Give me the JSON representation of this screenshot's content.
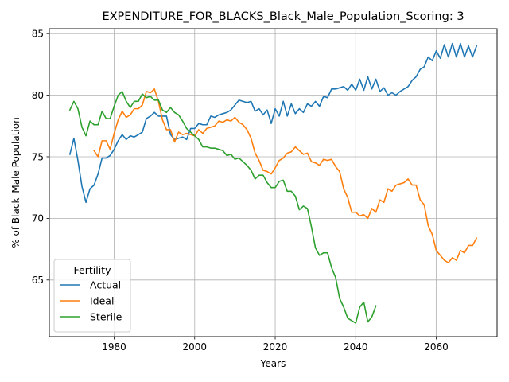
{
  "chart_data": {
    "type": "line",
    "title": "EXPENDITURE_FOR_BLACKS_Black_Male_Population_Scoring: 3",
    "xlabel": "Years",
    "ylabel": "% of Black_Male Population",
    "xlim": [
      1963.9,
      2075.1
    ],
    "ylim": [
      60.4,
      85.4
    ],
    "xticks": [
      1980,
      2000,
      2020,
      2040,
      2060
    ],
    "yticks": [
      65,
      70,
      75,
      80,
      85
    ],
    "grid": true,
    "legend": {
      "title": "Fertility",
      "placement": "lower-left"
    },
    "series": [
      {
        "name": "Actual",
        "color": "#1f77b4",
        "x": [
          1969,
          1970,
          1971,
          1972,
          1973,
          1974,
          1975,
          1976,
          1977,
          1978,
          1979,
          1980,
          1981,
          1982,
          1983,
          1984,
          1985,
          1986,
          1987,
          1988,
          1989,
          1990,
          1991,
          1992,
          1993,
          1994,
          1995,
          1996,
          1997,
          1998,
          1999,
          2000,
          2001,
          2002,
          2003,
          2004,
          2005,
          2006,
          2007,
          2008,
          2009,
          2010,
          2011,
          2012,
          2013,
          2014,
          2015,
          2016,
          2017,
          2018,
          2019,
          2020,
          2021,
          2022,
          2023,
          2024,
          2025,
          2026,
          2027,
          2028,
          2029,
          2030,
          2031,
          2032,
          2033,
          2034,
          2035,
          2036,
          2037,
          2038,
          2039,
          2040,
          2041,
          2042,
          2043,
          2044,
          2045,
          2046,
          2047,
          2048,
          2049,
          2050,
          2051,
          2052,
          2053,
          2054,
          2055,
          2056,
          2057,
          2058,
          2059,
          2060,
          2061,
          2062,
          2063,
          2064,
          2065,
          2066,
          2067,
          2068,
          2069,
          2070
        ],
        "values": [
          75.2,
          76.5,
          74.7,
          72.6,
          71.3,
          72.4,
          72.7,
          73.6,
          74.9,
          74.9,
          75.1,
          75.6,
          76.3,
          76.8,
          76.4,
          76.7,
          76.6,
          76.8,
          77.0,
          78.1,
          78.3,
          78.6,
          78.3,
          78.3,
          78.3,
          76.8,
          76.4,
          76.5,
          76.6,
          76.4,
          77.3,
          77.3,
          77.7,
          77.6,
          77.6,
          78.3,
          78.2,
          78.4,
          78.5,
          78.6,
          78.8,
          79.2,
          79.6,
          79.5,
          79.4,
          79.5,
          78.7,
          78.9,
          78.4,
          78.8,
          77.7,
          78.9,
          78.3,
          79.5,
          78.3,
          79.3,
          78.5,
          78.9,
          78.6,
          79.3,
          79.1,
          79.5,
          79.1,
          79.9,
          79.8,
          80.5,
          80.5,
          80.6,
          80.7,
          80.4,
          80.9,
          80.4,
          81.3,
          80.4,
          81.5,
          80.5,
          81.3,
          80.3,
          80.6,
          80.0,
          80.2,
          80.0,
          80.3,
          80.5,
          80.7,
          81.2,
          81.5,
          82.1,
          82.3,
          83.1,
          82.8,
          83.6,
          83.0,
          84.1,
          83.1,
          84.2,
          83.1,
          84.2,
          83.1,
          84.0,
          83.1,
          84.0
        ]
      },
      {
        "name": "Ideal",
        "color": "#ff7f0e",
        "x": [
          1975,
          1976,
          1977,
          1978,
          1979,
          1980,
          1981,
          1982,
          1983,
          1984,
          1985,
          1986,
          1987,
          1988,
          1989,
          1990,
          1991,
          1992,
          1993,
          1994,
          1995,
          1996,
          1997,
          1998,
          1999,
          2000,
          2001,
          2002,
          2003,
          2004,
          2005,
          2006,
          2007,
          2008,
          2009,
          2010,
          2011,
          2012,
          2013,
          2014,
          2015,
          2016,
          2017,
          2018,
          2019,
          2020,
          2021,
          2022,
          2023,
          2024,
          2025,
          2026,
          2027,
          2028,
          2029,
          2030,
          2031,
          2032,
          2033,
          2034,
          2035,
          2036,
          2037,
          2038,
          2039,
          2040,
          2041,
          2042,
          2043,
          2044,
          2045,
          2046,
          2047,
          2048,
          2049,
          2050,
          2051,
          2052,
          2053,
          2054,
          2055,
          2056,
          2057,
          2058,
          2059,
          2060,
          2061,
          2062,
          2063,
          2064,
          2065,
          2066,
          2067,
          2068,
          2069,
          2070
        ],
        "values": [
          75.5,
          75.0,
          76.3,
          76.3,
          75.6,
          76.9,
          78.0,
          78.7,
          78.2,
          78.4,
          78.9,
          78.9,
          79.2,
          80.3,
          80.2,
          80.5,
          79.5,
          78.0,
          77.2,
          77.2,
          76.2,
          77.0,
          76.8,
          76.9,
          76.8,
          76.7,
          77.2,
          76.9,
          77.3,
          77.4,
          77.5,
          77.9,
          77.8,
          78.0,
          77.9,
          78.2,
          77.8,
          77.6,
          77.2,
          76.5,
          75.3,
          74.7,
          73.9,
          73.8,
          73.6,
          74.1,
          74.7,
          74.9,
          75.3,
          75.4,
          75.8,
          75.5,
          75.2,
          75.3,
          74.6,
          74.5,
          74.3,
          74.8,
          74.7,
          74.8,
          74.2,
          73.8,
          72.4,
          71.7,
          70.5,
          70.5,
          70.2,
          70.3,
          70.0,
          70.8,
          70.5,
          71.5,
          71.3,
          72.4,
          72.2,
          72.7,
          72.8,
          72.9,
          73.2,
          72.7,
          72.7,
          71.5,
          71.1,
          69.4,
          68.7,
          67.4,
          67.0,
          66.6,
          66.4,
          66.8,
          66.6,
          67.4,
          67.2,
          67.8,
          67.8,
          68.4
        ]
      },
      {
        "name": "Sterile",
        "color": "#2ca02c",
        "x": [
          1969,
          1970,
          1971,
          1972,
          1973,
          1974,
          1975,
          1976,
          1977,
          1978,
          1979,
          1980,
          1981,
          1982,
          1983,
          1984,
          1985,
          1986,
          1987,
          1988,
          1989,
          1990,
          1991,
          1992,
          1993,
          1994,
          1995,
          1996,
          1997,
          1998,
          1999,
          2000,
          2001,
          2002,
          2003,
          2004,
          2005,
          2006,
          2007,
          2008,
          2009,
          2010,
          2011,
          2012,
          2013,
          2014,
          2015,
          2016,
          2017,
          2018,
          2019,
          2020,
          2021,
          2022,
          2023,
          2024,
          2025,
          2026,
          2027,
          2028,
          2029,
          2030,
          2031,
          2032,
          2033,
          2034,
          2035,
          2036,
          2037,
          2038,
          2039,
          2040,
          2041,
          2042,
          2043,
          2044,
          2045
        ],
        "values": [
          78.8,
          79.5,
          78.9,
          77.4,
          76.7,
          77.9,
          77.6,
          77.6,
          78.7,
          78.1,
          78.1,
          79.1,
          80.0,
          80.3,
          79.5,
          79.0,
          79.5,
          79.5,
          80.1,
          79.8,
          79.9,
          79.6,
          79.6,
          78.8,
          78.6,
          79.0,
          78.6,
          78.4,
          77.9,
          77.3,
          77.0,
          76.7,
          76.4,
          75.8,
          75.8,
          75.7,
          75.7,
          75.6,
          75.5,
          75.1,
          75.2,
          74.8,
          74.9,
          74.6,
          74.3,
          73.9,
          73.2,
          73.5,
          73.5,
          72.9,
          72.5,
          72.5,
          73.0,
          73.1,
          72.2,
          72.2,
          71.8,
          70.7,
          71.0,
          70.8,
          69.3,
          67.6,
          67.0,
          67.2,
          67.2,
          66.0,
          65.2,
          63.5,
          62.8,
          61.9,
          61.7,
          61.5,
          62.8,
          63.2,
          61.6,
          62.0,
          62.9
        ]
      }
    ]
  }
}
